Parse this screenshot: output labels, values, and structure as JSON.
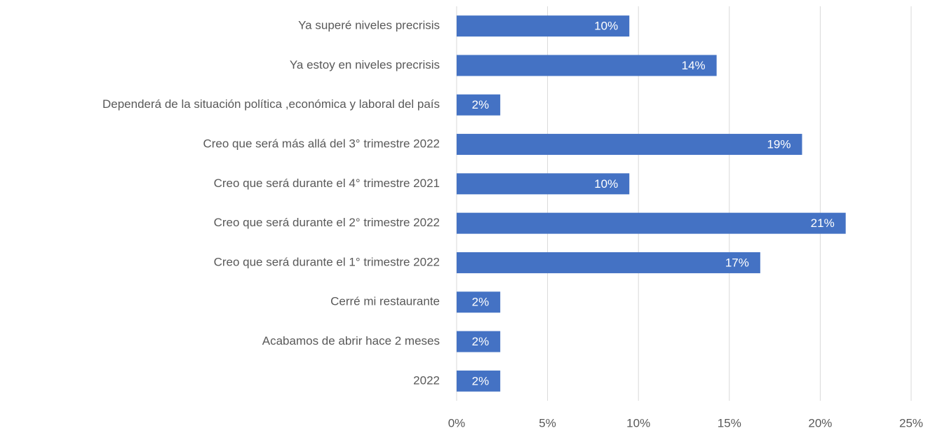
{
  "chart_data": {
    "type": "hbar",
    "categories": [
      "Ya superé niveles precrisis",
      "Ya estoy en niveles precrisis",
      "Dependerá de la situación política ,económica y laboral del país",
      "Creo que será más allá del 3° trimestre 2022",
      "Creo que será durante el 4° trimestre 2021",
      "Creo que será durante el 2° trimestre 2022",
      "Creo que será durante el 1° trimestre 2022",
      "Cerré mi restaurante",
      "Acabamos de abrir hace 2 meses",
      "2022"
    ],
    "values": [
      9.5,
      14.3,
      2.4,
      19.0,
      9.5,
      21.4,
      16.7,
      2.4,
      2.4,
      2.4
    ],
    "value_labels": [
      "10%",
      "14%",
      "2%",
      "19%",
      "10%",
      "21%",
      "17%",
      "2%",
      "2%",
      "2%"
    ],
    "color": "#4472c4",
    "xlim": [
      0,
      25
    ],
    "xticks": [
      {
        "value": 0,
        "label": "0%"
      },
      {
        "value": 5,
        "label": "5%"
      },
      {
        "value": 10,
        "label": "10%"
      },
      {
        "value": 15,
        "label": "15%"
      },
      {
        "value": 20,
        "label": "20%"
      },
      {
        "value": 25,
        "label": "25%"
      }
    ],
    "grid": true
  }
}
